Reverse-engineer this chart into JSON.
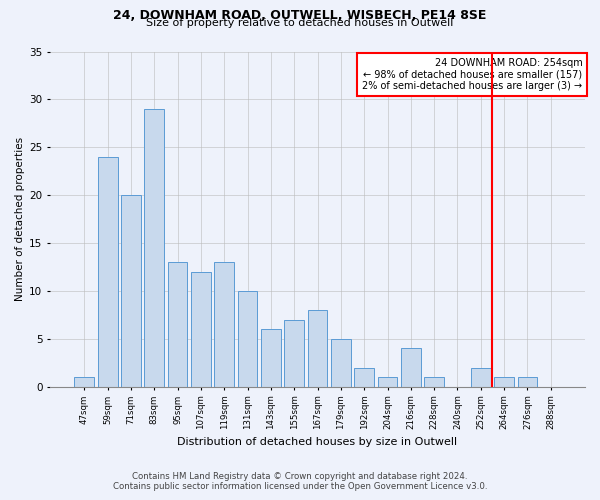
{
  "title1": "24, DOWNHAM ROAD, OUTWELL, WISBECH, PE14 8SE",
  "title2": "Size of property relative to detached houses in Outwell",
  "xlabel": "Distribution of detached houses by size in Outwell",
  "ylabel": "Number of detached properties",
  "categories": [
    "47sqm",
    "59sqm",
    "71sqm",
    "83sqm",
    "95sqm",
    "107sqm",
    "119sqm",
    "131sqm",
    "143sqm",
    "155sqm",
    "167sqm",
    "179sqm",
    "192sqm",
    "204sqm",
    "216sqm",
    "228sqm",
    "240sqm",
    "252sqm",
    "264sqm",
    "276sqm",
    "288sqm"
  ],
  "values": [
    1,
    24,
    20,
    29,
    13,
    12,
    13,
    10,
    6,
    7,
    8,
    5,
    2,
    1,
    4,
    1,
    0,
    2,
    1,
    1,
    0
  ],
  "bar_color": "#c8d9ed",
  "bar_edge_color": "#5b9bd5",
  "vline_color": "red",
  "vline_index": 17,
  "annotation_title": "24 DOWNHAM ROAD: 254sqm",
  "annotation_line1": "← 98% of detached houses are smaller (157)",
  "annotation_line2": "2% of semi-detached houses are larger (3) →",
  "ylim": [
    0,
    35
  ],
  "yticks": [
    0,
    5,
    10,
    15,
    20,
    25,
    30,
    35
  ],
  "footer1": "Contains HM Land Registry data © Crown copyright and database right 2024.",
  "footer2": "Contains public sector information licensed under the Open Government Licence v3.0.",
  "bg_color": "#eef2fb",
  "grid_color": "#bbbbbb"
}
